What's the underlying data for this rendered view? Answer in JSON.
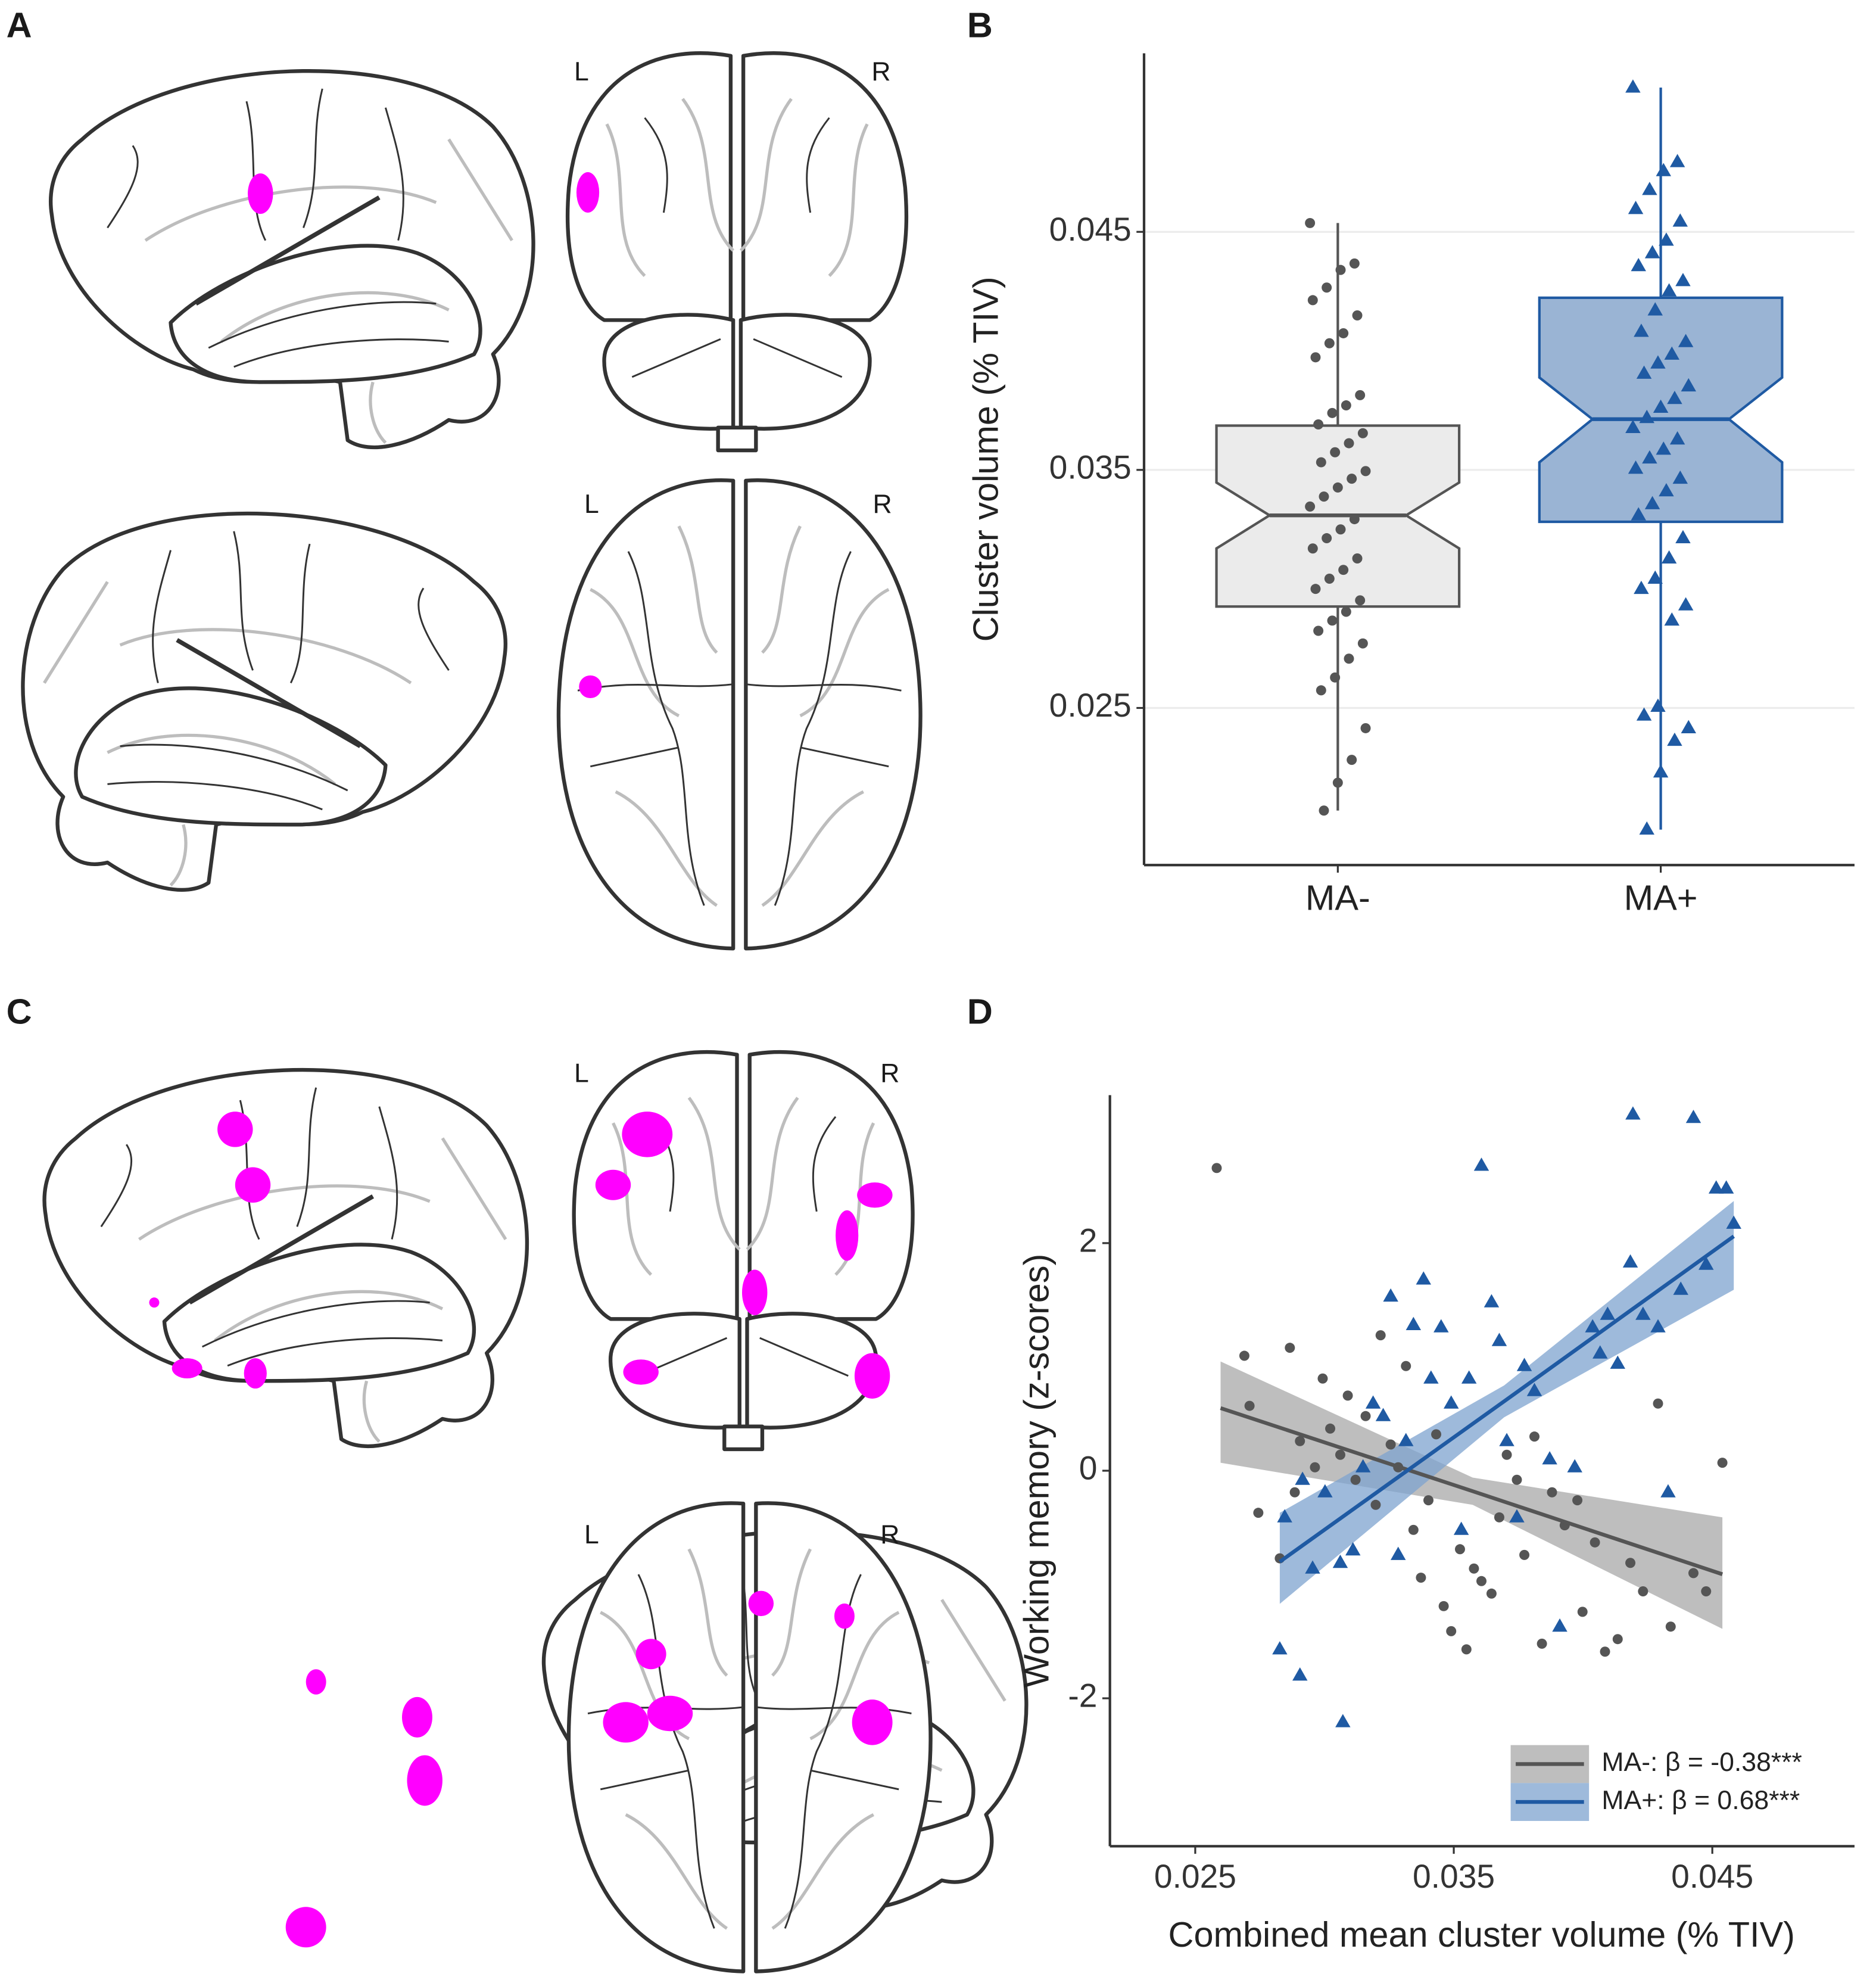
{
  "panel_labels": [
    "A",
    "B",
    "C",
    "D"
  ],
  "brain_view_labels": [
    [
      "L",
      "R"
    ],
    [
      "L",
      "R"
    ],
    [
      "L",
      "R"
    ],
    [
      "L",
      "R"
    ]
  ],
  "chart_data": [
    {
      "type": "box",
      "ylabel": "Cluster volume (% TIV)",
      "categories": [
        "MA-",
        "MA+"
      ],
      "ylim": [
        0.0184,
        0.0525
      ],
      "yticks": [
        0.025,
        0.035,
        0.045
      ],
      "grid": true,
      "boxes": [
        {
          "color": "#555555",
          "fill": "#ebebeb",
          "marker": "circle",
          "box": {
            "min": 0.02069,
            "q1": 0.02926,
            "median": 0.03309,
            "q3": 0.03686,
            "max": 0.04537,
            "notch": [
              0.0317,
              0.03447
            ]
          },
          "values": [
            0.04537,
            0.04367,
            0.0434,
            0.04266,
            0.04213,
            0.04149,
            0.04074,
            0.04032,
            0.03973,
            0.03814,
            0.03771,
            0.03739,
            0.03691,
            0.03654,
            0.03612,
            0.03574,
            0.03532,
            0.03495,
            0.03463,
            0.03426,
            0.03388,
            0.03346,
            0.03293,
            0.0325,
            0.03213,
            0.0317,
            0.03128,
            0.0308,
            0.03043,
            0.03,
            0.02952,
            0.02904,
            0.02867,
            0.02824,
            0.02771,
            0.02707,
            0.02628,
            0.02574,
            0.02415,
            0.02282,
            0.02186,
            0.02069
          ]
        },
        {
          "color": "#1f5aa3",
          "fill": "#9ab4d4",
          "marker": "triangle",
          "box": {
            "min": 0.01989,
            "q1": 0.03282,
            "median": 0.03713,
            "q3": 0.04223,
            "max": 0.05106,
            "notch": [
              0.03532,
              0.03888
            ]
          },
          "values": [
            0.05106,
            0.04793,
            0.04755,
            0.04676,
            0.04596,
            0.04543,
            0.04463,
            0.0441,
            0.04356,
            0.04293,
            0.0425,
            0.0417,
            0.0408,
            0.04037,
            0.03984,
            0.03947,
            0.03904,
            0.03851,
            0.03798,
            0.03761,
            0.03718,
            0.03676,
            0.03628,
            0.03585,
            0.03548,
            0.03505,
            0.03463,
            0.0341,
            0.03356,
            0.03309,
            0.03213,
            0.03128,
            0.03043,
            0.03,
            0.02931,
            0.02867,
            0.02505,
            0.02468,
            0.02415,
            0.02362,
            0.02229,
            0.01989
          ]
        }
      ]
    },
    {
      "type": "scatter",
      "xlabel": "Combined mean cluster volume (% TIV)",
      "ylabel": "Working memory (z-scores)",
      "xlim": [
        0.0217,
        0.0505
      ],
      "ylim": [
        -3.3,
        3.3
      ],
      "xticks": [
        0.025,
        0.035,
        0.045
      ],
      "yticks": [
        -2,
        0,
        2
      ],
      "grid": false,
      "legend": "bottom-right",
      "series": [
        {
          "name": "MA-: β = -0.38***",
          "color": "#555555",
          "band_color": "#a8a8a8",
          "marker": "circle",
          "x": [
            0.02583,
            0.0269,
            0.0271,
            0.02744,
            0.02827,
            0.02866,
            0.02885,
            0.02905,
            0.02963,
            0.02993,
            0.03022,
            0.03061,
            0.0309,
            0.0312,
            0.03159,
            0.03198,
            0.03217,
            0.03256,
            0.03285,
            0.03315,
            0.03344,
            0.03373,
            0.03402,
            0.03432,
            0.03461,
            0.0349,
            0.03524,
            0.03549,
            0.03578,
            0.03607,
            0.03646,
            0.03676,
            0.03705,
            0.03744,
            0.03773,
            0.03812,
            0.03841,
            0.0388,
            0.03929,
            0.03978,
            0.03998,
            0.04046,
            0.04085,
            0.04134,
            0.04183,
            0.04232,
            0.0429,
            0.04339,
            0.04427,
            0.04476,
            0.04539
          ],
          "values": [
            2.66,
            1.01,
            0.57,
            -0.37,
            -0.77,
            1.08,
            -0.19,
            0.26,
            0.03,
            0.81,
            0.37,
            0.14,
            0.66,
            -0.08,
            0.48,
            -0.3,
            1.19,
            0.23,
            0.03,
            0.92,
            -0.52,
            -0.94,
            -0.26,
            0.32,
            -1.19,
            -1.41,
            -0.69,
            -1.57,
            -0.86,
            -0.97,
            -1.08,
            -0.41,
            0.14,
            -0.08,
            -0.74,
            0.3,
            -1.52,
            -0.19,
            -0.48,
            -0.26,
            -1.24,
            -0.63,
            -1.59,
            -1.48,
            -0.81,
            -1.06,
            0.59,
            -1.37,
            -0.9,
            -1.06,
            0.07
          ],
          "fit": {
            "x": [
              0.02598,
              0.03573,
              0.04539
            ],
            "y": [
              0.55,
              -0.18,
              -0.91
            ],
            "ci_low": [
              0.07,
              -0.3,
              -1.39
            ],
            "ci_high": [
              0.96,
              -0.06,
              -0.41
            ]
          }
        },
        {
          "name": "MA+: β = 0.68***",
          "color": "#1f5aa3",
          "band_color": "#7ea3cf",
          "marker": "triangle",
          "x": [
            0.02827,
            0.02905,
            0.02846,
            0.02915,
            0.02954,
            0.03002,
            0.03061,
            0.03071,
            0.0311,
            0.03149,
            0.03188,
            0.03227,
            0.03256,
            0.03285,
            0.03315,
            0.03344,
            0.03383,
            0.03412,
            0.03451,
            0.0349,
            0.03529,
            0.03559,
            0.03607,
            0.03646,
            0.03676,
            0.03705,
            0.03744,
            0.03773,
            0.03812,
            0.03871,
            0.0391,
            0.03968,
            0.04037,
            0.04066,
            0.04095,
            0.04134,
            0.04183,
            0.04193,
            0.04232,
            0.0429,
            0.04329,
            0.04378,
            0.04427,
            0.04476,
            0.04515,
            0.04554,
            0.04583
          ],
          "values": [
            -1.57,
            -1.8,
            -0.41,
            -0.08,
            -0.86,
            -0.19,
            -0.81,
            -2.21,
            -0.7,
            0.03,
            0.59,
            0.48,
            1.53,
            -0.74,
            0.26,
            1.28,
            1.68,
            0.81,
            1.26,
            0.59,
            -0.52,
            0.81,
            2.68,
            1.48,
            1.14,
            0.26,
            -0.41,
            0.92,
            0.7,
            0.1,
            -1.37,
            0.03,
            1.26,
            1.03,
            1.37,
            0.94,
            1.83,
            3.13,
            1.37,
            1.26,
            -0.19,
            1.59,
            3.1,
            1.81,
            2.48,
            2.48,
            2.17
          ],
          "fit": {
            "x": [
              0.02827,
              0.03695,
              0.04583
            ],
            "y": [
              -0.8,
              0.61,
              2.06
            ],
            "ci_low": [
              -1.17,
              0.47,
              1.59
            ],
            "ci_high": [
              -0.37,
              0.75,
              2.37
            ]
          }
        }
      ]
    }
  ]
}
